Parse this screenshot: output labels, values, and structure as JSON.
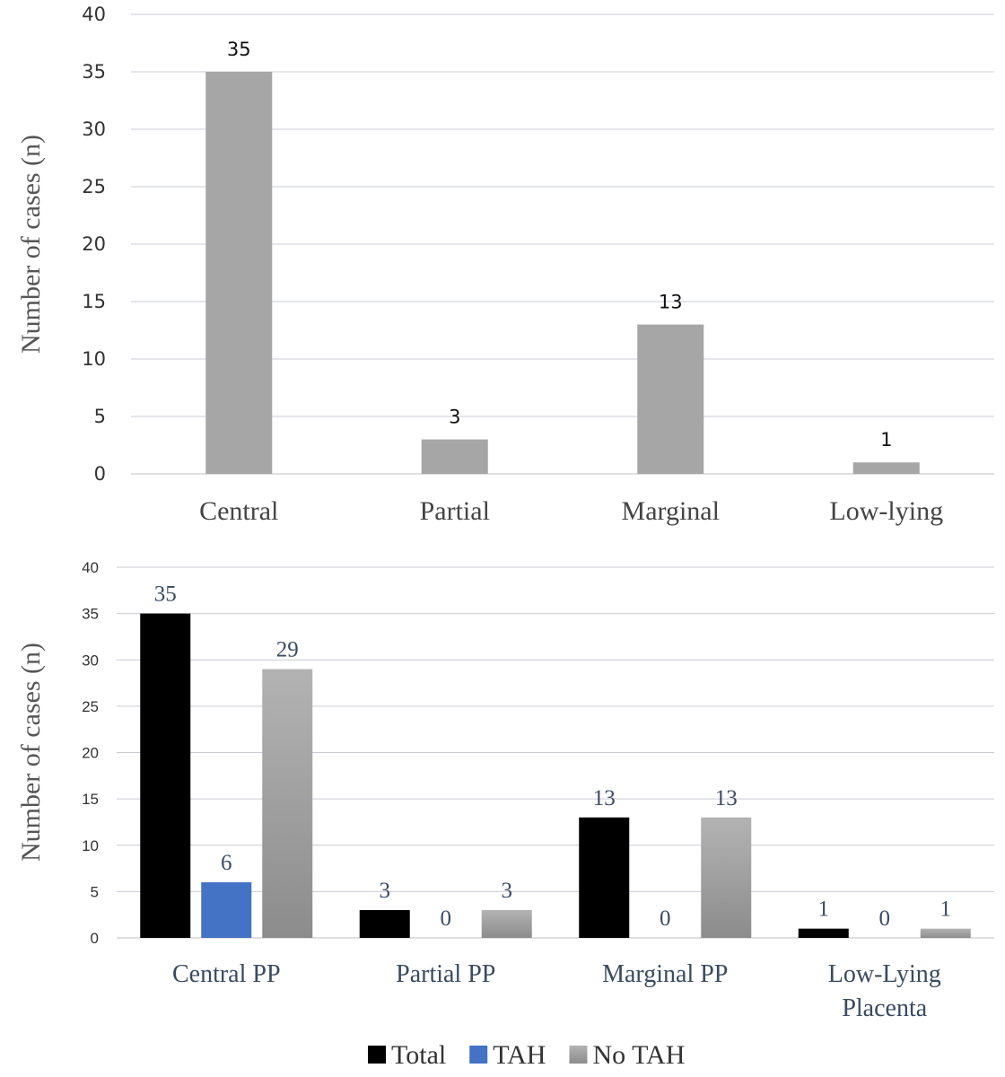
{
  "chart_data": [
    {
      "type": "bar",
      "categories": [
        "Central",
        "Partial",
        "Marginal",
        "Low-lying"
      ],
      "values": [
        35,
        3,
        13,
        1
      ],
      "data_labels": [
        "35",
        "3",
        "13",
        "1"
      ],
      "ylabel": "Number of cases (n)",
      "ylim": [
        0,
        40
      ],
      "yticks": [
        0,
        5,
        10,
        15,
        20,
        25,
        30,
        35,
        40
      ],
      "grid": true,
      "colors": {
        "bar": "#a6a6a6",
        "grid": "#c9ccd6"
      }
    },
    {
      "type": "bar",
      "categories": [
        "Central PP",
        "Partial PP",
        "Marginal PP",
        "Low-Lying Placenta"
      ],
      "category_lines": [
        [
          "Central PP"
        ],
        [
          "Partial PP"
        ],
        [
          "Marginal PP"
        ],
        [
          "Low-Lying",
          "Placenta"
        ]
      ],
      "series": [
        {
          "name": "Total",
          "values": [
            35,
            3,
            13,
            1
          ],
          "labels": [
            "35",
            "3",
            "13",
            "1"
          ],
          "color": "#000000"
        },
        {
          "name": "TAH",
          "values": [
            6,
            0,
            0,
            0
          ],
          "labels": [
            "6",
            "0",
            "0",
            "0"
          ],
          "color": "#4472c4"
        },
        {
          "name": "No TAH",
          "values": [
            29,
            3,
            13,
            1
          ],
          "labels": [
            "29",
            "3",
            "13",
            "1"
          ],
          "color": "#a6a6a6"
        }
      ],
      "ylabel": "Number of cases (n)",
      "ylim": [
        0,
        40
      ],
      "yticks": [
        0,
        5,
        10,
        15,
        20,
        25,
        30,
        35,
        40
      ],
      "grid": true,
      "legend": "bottom",
      "colors": {
        "grid": "#c9ccd6"
      }
    }
  ]
}
